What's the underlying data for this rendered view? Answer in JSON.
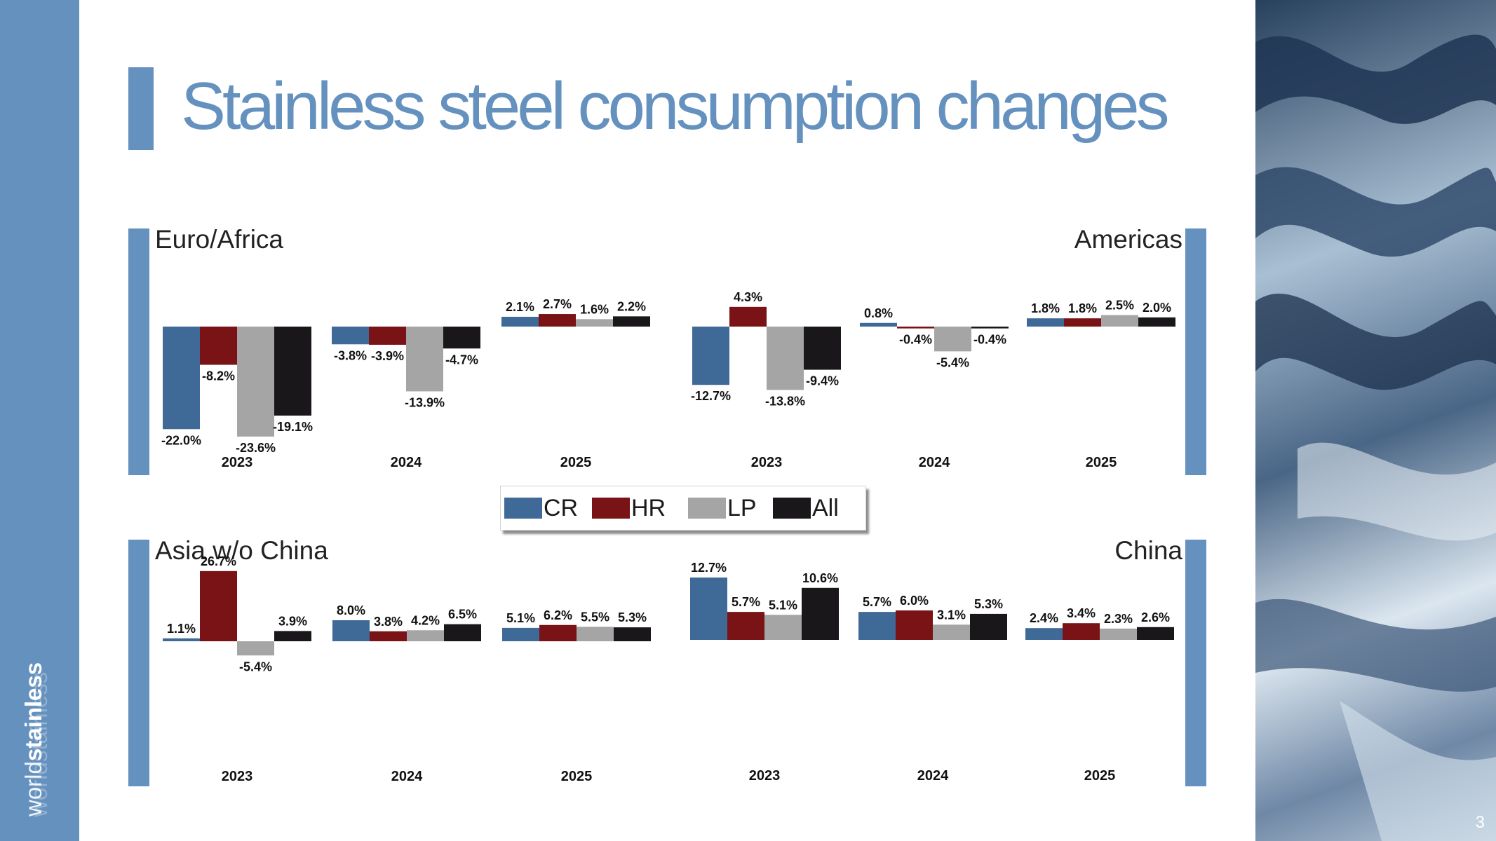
{
  "slide": {
    "title": "Stainless steel consumption changes",
    "page_number": "3",
    "logo_light": "world",
    "logo_bold": "stainless"
  },
  "colors": {
    "accent": "#6591bf",
    "CR": "#3f6a97",
    "HR": "#7a1315",
    "LP": "#a5a5a5",
    "All": "#1a171b"
  },
  "legend": [
    "CR",
    "HR",
    "LP",
    "All"
  ],
  "chart_data": [
    {
      "type": "bar",
      "title": "Euro/Africa",
      "categories": [
        "2023",
        "2024",
        "2025"
      ],
      "series": [
        {
          "name": "CR",
          "values": [
            -22.0,
            -3.8,
            2.1
          ]
        },
        {
          "name": "HR",
          "values": [
            -8.2,
            -3.9,
            2.7
          ]
        },
        {
          "name": "LP",
          "values": [
            -23.6,
            -13.9,
            1.6
          ]
        },
        {
          "name": "All",
          "values": [
            -19.1,
            -4.7,
            2.2
          ]
        }
      ]
    },
    {
      "type": "bar",
      "title": "Americas",
      "categories": [
        "2023",
        "2024",
        "2025"
      ],
      "series": [
        {
          "name": "CR",
          "values": [
            -12.7,
            0.8,
            1.8
          ]
        },
        {
          "name": "HR",
          "values": [
            4.3,
            -0.4,
            1.8
          ]
        },
        {
          "name": "LP",
          "values": [
            -13.8,
            -5.4,
            2.5
          ]
        },
        {
          "name": "All",
          "values": [
            -9.4,
            -0.4,
            2.0
          ]
        }
      ]
    },
    {
      "type": "bar",
      "title": "Asia w/o China",
      "categories": [
        "2023",
        "2024",
        "2025"
      ],
      "series": [
        {
          "name": "CR",
          "values": [
            1.1,
            8.0,
            5.1
          ]
        },
        {
          "name": "HR",
          "values": [
            26.7,
            3.8,
            6.2
          ]
        },
        {
          "name": "LP",
          "values": [
            -5.4,
            4.2,
            5.5
          ]
        },
        {
          "name": "All",
          "values": [
            3.9,
            6.5,
            5.3
          ]
        }
      ]
    },
    {
      "type": "bar",
      "title": "China",
      "categories": [
        "2023",
        "2024",
        "2025"
      ],
      "series": [
        {
          "name": "CR",
          "values": [
            12.7,
            5.7,
            2.4
          ]
        },
        {
          "name": "HR",
          "values": [
            5.7,
            6.0,
            3.4
          ]
        },
        {
          "name": "LP",
          "values": [
            5.1,
            3.1,
            2.3
          ]
        },
        {
          "name": "All",
          "values": [
            10.6,
            5.3,
            2.6
          ]
        }
      ]
    }
  ]
}
